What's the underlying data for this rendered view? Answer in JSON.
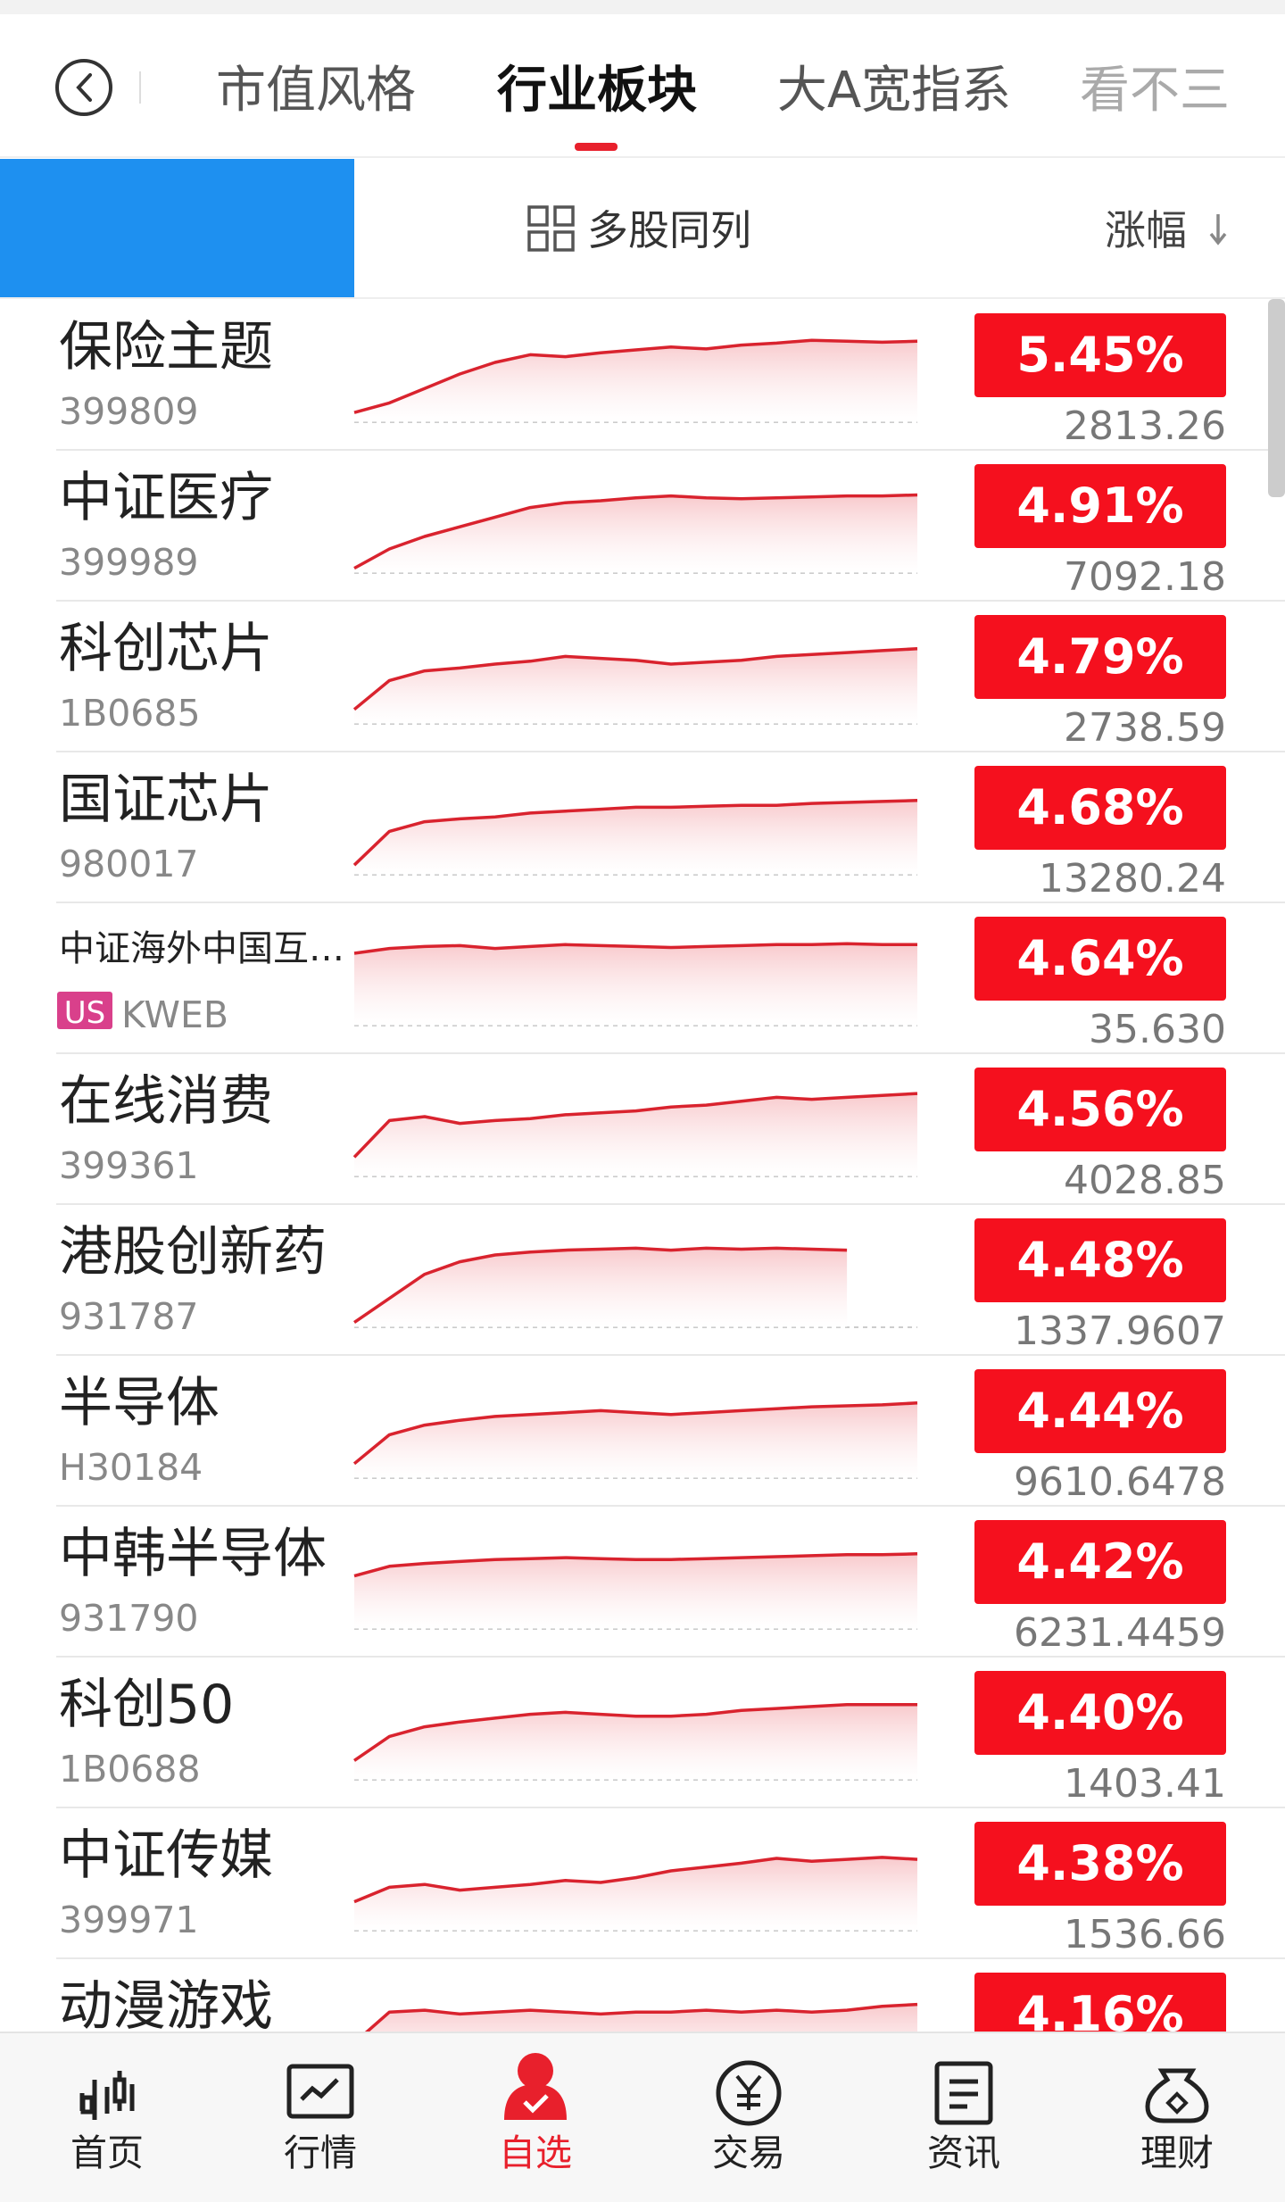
{
  "tabs": [
    "市值风格",
    "行业板块",
    "大A宽指系",
    "看不三"
  ],
  "active_tab": 1,
  "toolbar": {
    "compare": "多股同列",
    "sort": "涨幅"
  },
  "trend_ylim": [
    0,
    100
  ],
  "rows": [
    {
      "name": "保险主题",
      "code": "399809",
      "change": "5.45%",
      "price": "2813.26",
      "trend": [
        10,
        20,
        35,
        50,
        62,
        70,
        68,
        72,
        75,
        78,
        76,
        80,
        82,
        85,
        84,
        83,
        84
      ]
    },
    {
      "name": "中证医疗",
      "code": "399989",
      "change": "4.91%",
      "price": "7092.18",
      "trend": [
        5,
        25,
        38,
        48,
        58,
        68,
        73,
        75,
        78,
        80,
        78,
        77,
        78,
        79,
        80,
        80,
        81
      ]
    },
    {
      "name": "科创芯片",
      "code": "1B0685",
      "change": "4.79%",
      "price": "2738.59",
      "trend": [
        15,
        45,
        55,
        58,
        62,
        65,
        70,
        68,
        66,
        62,
        64,
        66,
        70,
        72,
        74,
        76,
        78
      ]
    },
    {
      "name": "国证芯片",
      "code": "980017",
      "change": "4.68%",
      "price": "13280.24",
      "trend": [
        10,
        45,
        55,
        58,
        60,
        64,
        66,
        68,
        70,
        70,
        71,
        72,
        72,
        74,
        75,
        76,
        77
      ]
    },
    {
      "name": "中证海外中国互…",
      "tag": "US",
      "code": "KWEB",
      "change": "4.64%",
      "price": "35.630",
      "trend": [
        75,
        80,
        82,
        83,
        80,
        82,
        84,
        83,
        82,
        81,
        82,
        83,
        84,
        84,
        85,
        84,
        84
      ]
    },
    {
      "name": "在线消费",
      "code": "399361",
      "change": "4.56%",
      "price": "4028.85",
      "trend": [
        20,
        58,
        62,
        55,
        58,
        60,
        64,
        66,
        68,
        72,
        74,
        78,
        82,
        80,
        82,
        84,
        86
      ]
    },
    {
      "name": "港股创新药",
      "code": "931787",
      "change": "4.48%",
      "price": "1337.9607",
      "trend": [
        5,
        30,
        55,
        68,
        75,
        78,
        80,
        81,
        82,
        80,
        82,
        81,
        82,
        81,
        80,
        null,
        null
      ]
    },
    {
      "name": "半导体",
      "code": "H30184",
      "change": "4.44%",
      "price": "9610.6478",
      "trend": [
        15,
        45,
        55,
        60,
        64,
        66,
        68,
        70,
        68,
        66,
        68,
        70,
        72,
        74,
        75,
        76,
        78
      ]
    },
    {
      "name": "中韩半导体",
      "code": "931790",
      "change": "4.42%",
      "price": "6231.4459",
      "trend": [
        55,
        65,
        68,
        70,
        72,
        73,
        74,
        73,
        72,
        72,
        73,
        74,
        75,
        76,
        77,
        77,
        78
      ]
    },
    {
      "name": "科创50",
      "code": "1B0688",
      "change": "4.40%",
      "price": "1403.41",
      "trend": [
        20,
        45,
        55,
        60,
        64,
        68,
        70,
        68,
        66,
        66,
        68,
        72,
        74,
        76,
        78,
        78,
        78
      ]
    },
    {
      "name": "中证传媒",
      "code": "399971",
      "change": "4.38%",
      "price": "1536.66",
      "trend": [
        30,
        45,
        48,
        42,
        45,
        48,
        52,
        50,
        55,
        62,
        66,
        70,
        75,
        72,
        74,
        76,
        74
      ]
    },
    {
      "name": "动漫游戏",
      "code": "",
      "change": "4.16%",
      "price": "",
      "trend": [
        40,
        72,
        74,
        70,
        72,
        74,
        72,
        70,
        72,
        72,
        74,
        72,
        74,
        72,
        74,
        78,
        80
      ]
    }
  ],
  "nav": [
    "首页",
    "行情",
    "自选",
    "交易",
    "资讯",
    "理财"
  ],
  "active_nav": 2
}
